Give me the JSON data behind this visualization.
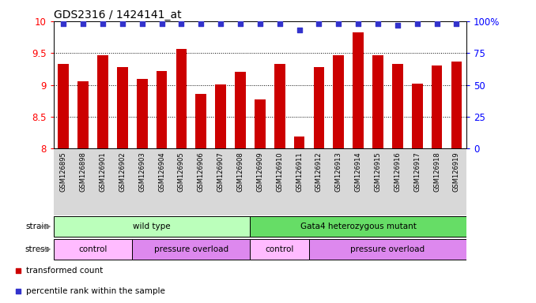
{
  "title": "GDS2316 / 1424141_at",
  "samples": [
    "GSM126895",
    "GSM126898",
    "GSM126901",
    "GSM126902",
    "GSM126903",
    "GSM126904",
    "GSM126905",
    "GSM126906",
    "GSM126907",
    "GSM126908",
    "GSM126909",
    "GSM126910",
    "GSM126911",
    "GSM126912",
    "GSM126913",
    "GSM126914",
    "GSM126915",
    "GSM126916",
    "GSM126917",
    "GSM126918",
    "GSM126919"
  ],
  "bar_values": [
    9.33,
    9.06,
    9.47,
    9.28,
    9.09,
    9.22,
    9.57,
    8.86,
    9.01,
    9.2,
    8.77,
    9.33,
    8.19,
    9.28,
    9.46,
    9.82,
    9.46,
    9.33,
    9.02,
    9.3,
    9.36
  ],
  "percentile_values": [
    98,
    98,
    98,
    98,
    98,
    98,
    98,
    98,
    98,
    98,
    98,
    98,
    93,
    98,
    98,
    98,
    98,
    97,
    98,
    98,
    98
  ],
  "bar_color": "#cc0000",
  "percentile_color": "#3333cc",
  "ylim_left": [
    8,
    10
  ],
  "ylim_right": [
    0,
    100
  ],
  "yticks_left": [
    8,
    8.5,
    9,
    9.5,
    10
  ],
  "yticks_right": [
    0,
    25,
    50,
    75,
    100
  ],
  "strain_groups": [
    {
      "label": "wild type",
      "start": 0,
      "end": 10,
      "color": "#bbffbb"
    },
    {
      "label": "Gata4 heterozygous mutant",
      "start": 10,
      "end": 21,
      "color": "#66dd66"
    }
  ],
  "stress_groups": [
    {
      "label": "control",
      "start": 0,
      "end": 4,
      "color": "#ffbbff"
    },
    {
      "label": "pressure overload",
      "start": 4,
      "end": 10,
      "color": "#dd88ee"
    },
    {
      "label": "control",
      "start": 10,
      "end": 13,
      "color": "#ffbbff"
    },
    {
      "label": "pressure overload",
      "start": 13,
      "end": 21,
      "color": "#dd88ee"
    }
  ],
  "legend_bar_label": "transformed count",
  "legend_pct_label": "percentile rank within the sample",
  "strain_label": "strain",
  "stress_label": "stress"
}
